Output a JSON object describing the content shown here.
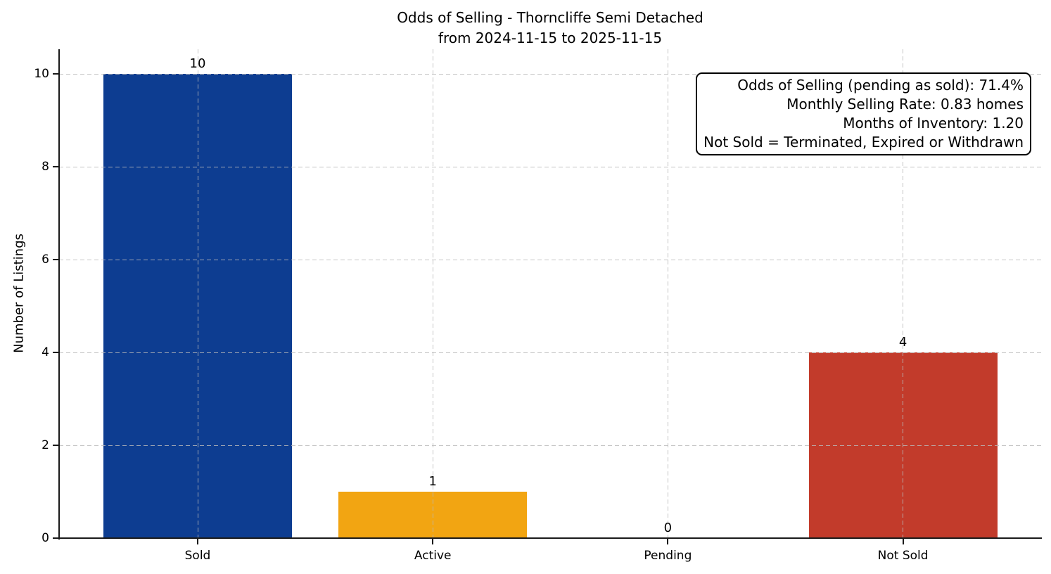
{
  "chart_data": {
    "type": "bar",
    "title": "Odds of Selling - Thorncliffe Semi Detached\nfrom 2024-11-15 to 2025-11-15",
    "ylabel": "Number of Listings",
    "xlabel": "",
    "categories": [
      "Sold",
      "Active",
      "Pending",
      "Not Sold"
    ],
    "values": [
      10,
      1,
      0,
      4
    ],
    "value_labels": [
      "10",
      "1",
      "0",
      "4"
    ],
    "bar_colors": [
      "#0d3d91",
      "#f2a512",
      "#808080",
      "#c23b2b"
    ],
    "yticks": [
      0,
      2,
      4,
      6,
      8,
      10
    ],
    "ylim": [
      0,
      10.5
    ],
    "grid": "dashed-both-axes",
    "legend_position": "none",
    "annotation": {
      "lines": [
        "Odds of Selling (pending as sold): 71.4%",
        "Monthly Selling Rate: 0.83 homes",
        "Months of Inventory: 1.20",
        "Not Sold = Terminated, Expired or Withdrawn"
      ]
    },
    "text_color": "#000000",
    "axis_color": "#1a1a1a",
    "grid_color": "#d8d8d8",
    "background_color": "#ffffff"
  }
}
